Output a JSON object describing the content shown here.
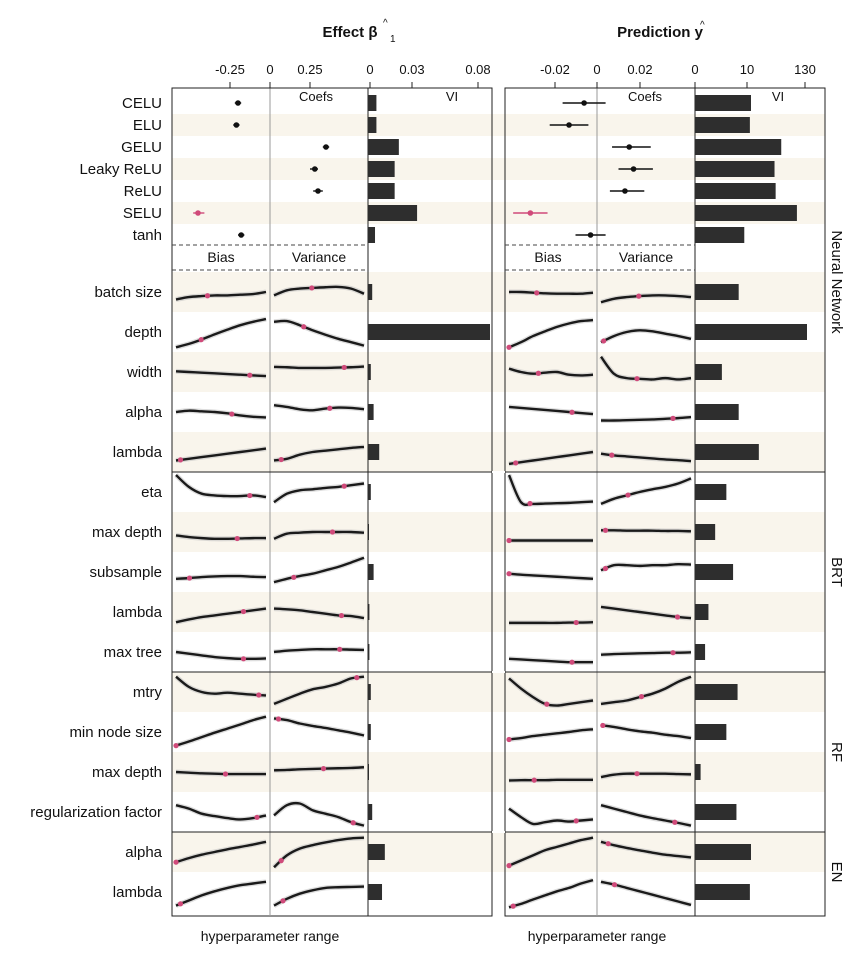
{
  "chart_data": {
    "type": "line",
    "titles": {
      "left_html": "Effect",
      "left_sym": "β",
      "left_sub": "1",
      "right_html": "Prediction",
      "right_sym": "y"
    },
    "xlabel": "hyperparameter range",
    "panel_labels": {
      "coefs": "Coefs",
      "vi": "VI",
      "bias": "Bias",
      "variance": "Variance"
    },
    "ticks": {
      "effect_bias": [
        "-0.25",
        "0"
      ],
      "effect_coefs": [
        "0.25"
      ],
      "effect_vi": [
        "0",
        "0.03",
        "0.08"
      ],
      "pred_bias": [
        "-0.02",
        "0"
      ],
      "pred_coefs": [
        "0.02"
      ],
      "pred_vi": [
        "0",
        "10",
        "130"
      ]
    },
    "groups": [
      {
        "name": "Neural Network",
        "start": 0,
        "end": 11
      },
      {
        "name": "BRT",
        "start": 12,
        "end": 16
      },
      {
        "name": "RF",
        "start": 17,
        "end": 20
      },
      {
        "name": "EN",
        "start": 21,
        "end": 22
      }
    ],
    "activations": [
      {
        "label": "CELU",
        "effect_bias": -0.2,
        "effect_bias_ci": [
          -0.22,
          -0.18
        ],
        "pred_bias": 0,
        "pred_coef": -0.006,
        "pred_coef_ci": [
          -0.016,
          0.004
        ],
        "effect_vi": 0.006,
        "pred_vi": 0.5
      },
      {
        "label": "ELU",
        "effect_bias": -0.21,
        "effect_bias_ci": [
          -0.23,
          -0.19
        ],
        "pred_coef": -0.013,
        "pred_coef_ci": [
          -0.022,
          -0.004
        ],
        "effect_vi": 0.006,
        "pred_vi": 0.49
      },
      {
        "label": "GELU",
        "effect_coef": 0.35,
        "effect_coef_ci": [
          0.33,
          0.37
        ],
        "pred_coef": 0.015,
        "pred_coef_ci": [
          0.007,
          0.025
        ],
        "effect_vi": 0.022,
        "pred_vi": 0.77
      },
      {
        "label": "Leaky ReLU",
        "effect_coef": 0.28,
        "effect_coef_ci": [
          0.25,
          0.3
        ],
        "pred_coef": 0.017,
        "pred_coef_ci": [
          0.01,
          0.026
        ],
        "effect_vi": 0.019,
        "pred_vi": 0.71
      },
      {
        "label": "ReLU",
        "effect_coef": 0.3,
        "effect_coef_ci": [
          0.27,
          0.33
        ],
        "pred_coef": 0.013,
        "pred_coef_ci": [
          0.006,
          0.022
        ],
        "effect_vi": 0.019,
        "pred_vi": 0.72
      },
      {
        "label": "SELU",
        "effect_bias": -0.45,
        "effect_bias_ci": [
          -0.48,
          -0.41
        ],
        "pred_bias": -0.031,
        "pred_bias_ci": [
          -0.039,
          -0.023
        ],
        "effect_vi": 0.035,
        "pred_vi": 0.91
      },
      {
        "label": "tanh",
        "effect_bias": -0.18,
        "effect_bias_ci": [
          -0.2,
          -0.16
        ],
        "pred_bias": -0.003,
        "pred_bias_ci": [
          -0.01,
          0.004
        ],
        "effect_vi": 0.005,
        "pred_vi": 0.44
      }
    ],
    "hyperparameters": [
      {
        "group": "Neural Network",
        "label": "batch size",
        "effect_vi": 0.003,
        "pred_vi": 0.39,
        "curves": {
          "eb": [
            0.72,
            0.65,
            0.62,
            0.6,
            0.6,
            0.58,
            0.56,
            0.5
          ],
          "ev": [
            0.6,
            0.45,
            0.4,
            0.38,
            0.36,
            0.35,
            0.4,
            0.55
          ],
          "pb": [
            0.5,
            0.5,
            0.52,
            0.54,
            0.55,
            0.55,
            0.55,
            0.52
          ],
          "pv": [
            0.8,
            0.7,
            0.65,
            0.62,
            0.6,
            0.6,
            0.62,
            0.65
          ]
        },
        "markers": {
          "eb": 0.35,
          "ev": 0.42,
          "pb": 0.33,
          "pv": 0.42
        }
      },
      {
        "group": "Neural Network",
        "label": "depth",
        "effect_vi": 0.087,
        "pred_vi": 1.0,
        "curves": {
          "eb": [
            0.95,
            0.85,
            0.72,
            0.57,
            0.43,
            0.3,
            0.2,
            0.12
          ],
          "ev": [
            0.2,
            0.18,
            0.3,
            0.45,
            0.58,
            0.7,
            0.8,
            0.9
          ],
          "pb": [
            0.95,
            0.8,
            0.62,
            0.48,
            0.35,
            0.25,
            0.18,
            0.15
          ],
          "pv": [
            0.8,
            0.62,
            0.5,
            0.45,
            0.48,
            0.55,
            0.62,
            0.7
          ]
        },
        "markers": {
          "eb": 0.28,
          "ev": 0.33,
          "pb": 0.0,
          "pv": 0.03
        }
      },
      {
        "group": "Neural Network",
        "label": "width",
        "effect_vi": 0.002,
        "pred_vi": 0.24,
        "curves": {
          "eb": [
            0.48,
            0.5,
            0.52,
            0.54,
            0.56,
            0.58,
            0.6,
            0.62
          ],
          "ev": [
            0.35,
            0.36,
            0.38,
            0.38,
            0.38,
            0.37,
            0.36,
            0.34
          ],
          "pb": [
            0.4,
            0.5,
            0.55,
            0.52,
            0.5,
            0.58,
            0.6,
            0.58
          ],
          "pv": [
            0.05,
            0.55,
            0.68,
            0.7,
            0.72,
            0.68,
            0.72,
            0.68
          ]
        },
        "markers": {
          "eb": 0.82,
          "ev": 0.78,
          "pb": 0.35,
          "pv": 0.4
        }
      },
      {
        "group": "Neural Network",
        "label": "alpha",
        "effect_vi": 0.004,
        "pred_vi": 0.39,
        "curves": {
          "eb": [
            0.5,
            0.46,
            0.48,
            0.5,
            0.54,
            0.6,
            0.64,
            0.66
          ],
          "ev": [
            0.3,
            0.35,
            0.42,
            0.45,
            0.4,
            0.37,
            0.38,
            0.42
          ],
          "pb": [
            0.35,
            0.38,
            0.41,
            0.44,
            0.47,
            0.5,
            0.53,
            0.56
          ],
          "pv": [
            0.75,
            0.75,
            0.74,
            0.73,
            0.72,
            0.7,
            0.68,
            0.65
          ]
        },
        "markers": {
          "eb": 0.62,
          "ev": 0.62,
          "pb": 0.75,
          "pv": 0.8
        }
      },
      {
        "group": "Neural Network",
        "label": "lambda",
        "effect_vi": 0.008,
        "pred_vi": 0.57,
        "curves": {
          "eb": [
            0.75,
            0.7,
            0.65,
            0.6,
            0.55,
            0.5,
            0.45,
            0.4
          ],
          "ev": [
            0.75,
            0.7,
            0.58,
            0.5,
            0.46,
            0.42,
            0.38,
            0.35
          ],
          "pb": [
            0.85,
            0.8,
            0.75,
            0.7,
            0.65,
            0.6,
            0.55,
            0.5
          ],
          "pv": [
            0.55,
            0.6,
            0.63,
            0.66,
            0.69,
            0.72,
            0.74,
            0.77
          ]
        },
        "markers": {
          "eb": 0.05,
          "ev": 0.08,
          "pb": 0.08,
          "pv": 0.12
        }
      },
      {
        "group": "BRT",
        "label": "eta",
        "effect_vi": 0.002,
        "pred_vi": 0.28,
        "curves": {
          "eb": [
            0.0,
            0.35,
            0.55,
            0.6,
            0.62,
            0.62,
            0.6,
            0.65
          ],
          "ev": [
            0.8,
            0.55,
            0.45,
            0.42,
            0.38,
            0.35,
            0.3,
            0.25
          ],
          "pb": [
            0.0,
            0.8,
            0.85,
            0.84,
            0.83,
            0.82,
            0.8,
            0.78
          ],
          "pv": [
            0.85,
            0.7,
            0.6,
            0.5,
            0.42,
            0.35,
            0.25,
            0.1
          ]
        },
        "markers": {
          "eb": 0.82,
          "ev": 0.78,
          "pb": 0.25,
          "pv": 0.3
        }
      },
      {
        "group": "BRT",
        "label": "max depth",
        "effect_vi": 0.0,
        "pred_vi": 0.18,
        "curves": {
          "eb": [
            0.6,
            0.65,
            0.68,
            0.7,
            0.7,
            0.69,
            0.68,
            0.68
          ],
          "ev": [
            0.7,
            0.55,
            0.52,
            0.5,
            0.5,
            0.5,
            0.5,
            0.52
          ],
          "pb": [
            0.75,
            0.75,
            0.75,
            0.75,
            0.75,
            0.75,
            0.75,
            0.75
          ],
          "pv": [
            0.45,
            0.45,
            0.46,
            0.46,
            0.46,
            0.47,
            0.47,
            0.48
          ]
        },
        "markers": {
          "eb": 0.68,
          "ev": 0.65,
          "pb": 0.0,
          "pv": 0.05
        }
      },
      {
        "group": "BRT",
        "label": "subsample",
        "effect_vi": 0.004,
        "pred_vi": 0.34,
        "curves": {
          "eb": [
            0.7,
            0.68,
            0.65,
            0.63,
            0.62,
            0.62,
            0.64,
            0.65
          ],
          "ev": [
            0.8,
            0.7,
            0.62,
            0.55,
            0.45,
            0.35,
            0.22,
            0.08
          ],
          "pb": [
            0.55,
            0.58,
            0.6,
            0.62,
            0.64,
            0.66,
            0.68,
            0.7
          ],
          "pv": [
            0.45,
            0.3,
            0.3,
            0.32,
            0.3,
            0.3,
            0.27,
            0.28
          ]
        },
        "markers": {
          "eb": 0.15,
          "ev": 0.22,
          "pb": 0.0,
          "pv": 0.05
        }
      },
      {
        "group": "BRT",
        "label": "lambda",
        "effect_vi": 0.001,
        "pred_vi": 0.12,
        "curves": {
          "eb": [
            0.8,
            0.72,
            0.65,
            0.6,
            0.55,
            0.5,
            0.45,
            0.4
          ],
          "ev": [
            0.4,
            0.42,
            0.45,
            0.5,
            0.55,
            0.6,
            0.62,
            0.68
          ],
          "pb": [
            0.82,
            0.82,
            0.82,
            0.82,
            0.82,
            0.81,
            0.81,
            0.8
          ],
          "pv": [
            0.35,
            0.4,
            0.45,
            0.5,
            0.55,
            0.6,
            0.65,
            0.68
          ]
        },
        "markers": {
          "eb": 0.75,
          "ev": 0.75,
          "pb": 0.8,
          "pv": 0.85
        }
      },
      {
        "group": "BRT",
        "label": "max tree",
        "effect_vi": 0.001,
        "pred_vi": 0.09,
        "curves": {
          "eb": [
            0.5,
            0.55,
            0.6,
            0.65,
            0.68,
            0.7,
            0.7,
            0.69
          ],
          "ev": [
            0.5,
            0.46,
            0.44,
            0.42,
            0.42,
            0.42,
            0.43,
            0.44
          ],
          "pb": [
            0.7,
            0.72,
            0.74,
            0.76,
            0.78,
            0.8,
            0.8,
            0.8
          ],
          "pv": [
            0.58,
            0.56,
            0.55,
            0.54,
            0.53,
            0.52,
            0.52,
            0.51
          ]
        },
        "markers": {
          "eb": 0.75,
          "ev": 0.73,
          "pb": 0.75,
          "pv": 0.8
        }
      },
      {
        "group": "RF",
        "label": "mtry",
        "effect_vi": 0.002,
        "pred_vi": 0.38,
        "curves": {
          "eb": [
            0.05,
            0.35,
            0.5,
            0.55,
            0.52,
            0.55,
            0.58,
            0.6
          ],
          "ev": [
            0.85,
            0.7,
            0.55,
            0.42,
            0.35,
            0.25,
            0.1,
            0.05
          ],
          "pb": [
            0.1,
            0.4,
            0.65,
            0.85,
            0.9,
            0.85,
            0.8,
            0.75
          ],
          "pv": [
            0.85,
            0.8,
            0.75,
            0.65,
            0.55,
            0.4,
            0.2,
            0.05
          ]
        },
        "markers": {
          "eb": 0.92,
          "ev": 0.92,
          "pb": 0.45,
          "pv": 0.45
        }
      },
      {
        "group": "RF",
        "label": "min node size",
        "effect_vi": 0.002,
        "pred_vi": 0.28,
        "curves": {
          "eb": [
            0.9,
            0.78,
            0.65,
            0.52,
            0.4,
            0.28,
            0.15,
            0.05
          ],
          "ev": [
            0.1,
            0.15,
            0.25,
            0.32,
            0.38,
            0.45,
            0.52,
            0.6
          ],
          "pb": [
            0.72,
            0.68,
            0.62,
            0.58,
            0.54,
            0.5,
            0.45,
            0.42
          ],
          "pv": [
            0.3,
            0.35,
            0.42,
            0.48,
            0.52,
            0.58,
            0.62,
            0.68
          ]
        },
        "markers": {
          "eb": 0.0,
          "ev": 0.05,
          "pb": 0.0,
          "pv": 0.02
        }
      },
      {
        "group": "RF",
        "label": "max depth",
        "effect_vi": 0.0,
        "pred_vi": 0.05,
        "curves": {
          "eb": [
            0.5,
            0.52,
            0.54,
            0.55,
            0.56,
            0.56,
            0.56,
            0.56
          ],
          "ev": [
            0.45,
            0.44,
            0.42,
            0.41,
            0.4,
            0.39,
            0.38,
            0.36
          ],
          "pb": [
            0.75,
            0.74,
            0.74,
            0.74,
            0.73,
            0.73,
            0.73,
            0.73
          ],
          "pv": [
            0.65,
            0.58,
            0.55,
            0.55,
            0.55,
            0.55,
            0.56,
            0.57
          ]
        },
        "markers": {
          "eb": 0.55,
          "ev": 0.55,
          "pb": 0.3,
          "pv": 0.4
        }
      },
      {
        "group": "RF",
        "label": "regularization factor",
        "effect_vi": 0.003,
        "pred_vi": 0.37,
        "curves": {
          "eb": [
            0.3,
            0.4,
            0.55,
            0.62,
            0.68,
            0.72,
            0.68,
            0.6
          ],
          "ev": [
            0.6,
            0.3,
            0.25,
            0.45,
            0.55,
            0.65,
            0.8,
            0.9
          ],
          "pb": [
            0.4,
            0.65,
            0.85,
            0.8,
            0.75,
            0.78,
            0.75,
            0.72
          ],
          "pv": [
            0.3,
            0.4,
            0.5,
            0.6,
            0.68,
            0.75,
            0.82,
            0.9
          ]
        },
        "markers": {
          "eb": 0.9,
          "ev": 0.88,
          "pb": 0.8,
          "pv": 0.82
        }
      },
      {
        "group": "EN",
        "label": "alpha",
        "effect_vi": 0.012,
        "pred_vi": 0.5,
        "curves": {
          "eb": [
            0.8,
            0.68,
            0.58,
            0.5,
            0.42,
            0.35,
            0.28,
            0.2
          ],
          "ev": [
            0.95,
            0.6,
            0.4,
            0.3,
            0.22,
            0.15,
            0.1,
            0.08
          ],
          "pb": [
            0.9,
            0.75,
            0.6,
            0.45,
            0.35,
            0.25,
            0.15,
            0.08
          ],
          "pv": [
            0.2,
            0.3,
            0.38,
            0.45,
            0.52,
            0.58,
            0.62,
            0.66
          ]
        },
        "markers": {
          "eb": 0.0,
          "ev": 0.08,
          "pb": 0.0,
          "pv": 0.08
        }
      },
      {
        "group": "EN",
        "label": "lambda",
        "effect_vi": 0.01,
        "pred_vi": 0.49,
        "curves": {
          "eb": [
            0.9,
            0.75,
            0.6,
            0.48,
            0.38,
            0.3,
            0.25,
            0.2
          ],
          "ev": [
            0.9,
            0.7,
            0.55,
            0.45,
            0.38,
            0.36,
            0.35,
            0.34
          ],
          "pb": [
            0.95,
            0.85,
            0.72,
            0.6,
            0.48,
            0.38,
            0.25,
            0.15
          ],
          "pv": [
            0.2,
            0.28,
            0.38,
            0.48,
            0.58,
            0.68,
            0.78,
            0.88
          ]
        },
        "markers": {
          "eb": 0.05,
          "ev": 0.1,
          "pb": 0.05,
          "pv": 0.15
        }
      }
    ]
  }
}
